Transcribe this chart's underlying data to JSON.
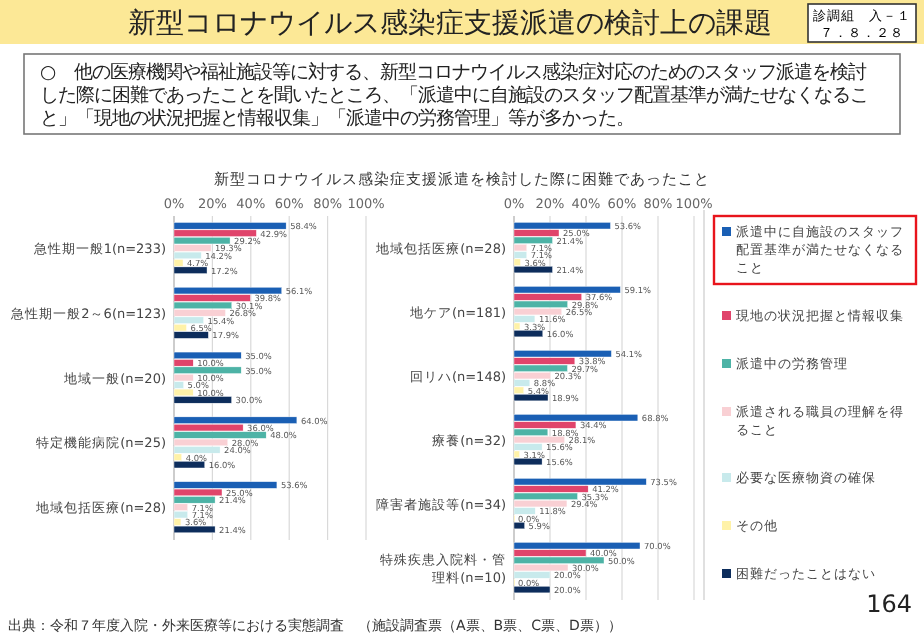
{
  "chart_data": [
    {
      "type": "bar",
      "orientation": "horizontal",
      "title": "新型コロナウイルス感染症支援派遣を検討した際に困難であったこと",
      "annotations": [
        "新型コロナウイルス感染症支援派遣の検討上の課題",
        "診調組　入－１",
        "７．８．２８",
        "○　他の医療機関や福祉施設等に対する、新型コロナウイルス感染症対応のためのスタッフ派遣を検討した際に困難であったことを聞いたところ、「派遣中に自施設のスタッフ配置基準が満たせなくなること」「現地の状況把握と情報収集」「派遣中の労務管理」等が多かった。",
        "出典：令和７年度入院・外来医療等における実態調査　（施設調査票（A票、B票、C票、D票））",
        "164"
      ],
      "categories": [
        "急性期一般1(n=233)",
        "急性期一般2～6(n=123)",
        "地域一般(n=20)",
        "特定機能病院(n=25)",
        "地域包括医療(n=28)"
      ],
      "xlim": [
        0,
        100
      ],
      "xticks": [
        {
          "value": 0,
          "label": "0%"
        },
        {
          "value": 20,
          "label": "20%"
        },
        {
          "value": 40,
          "label": "40%"
        },
        {
          "value": 60,
          "label": "60%"
        },
        {
          "value": 80,
          "label": "80%"
        },
        {
          "value": 100,
          "label": "100%"
        }
      ],
      "grid": "x",
      "series": [
        {
          "color": "#1a5fb4",
          "values": [
            58.4,
            56.1,
            35.0,
            64.0,
            53.6
          ],
          "value_labels": [
            "58.4%",
            "56.1%",
            "35.0%",
            "64.0%",
            "53.6%"
          ]
        },
        {
          "color": "#e0446b",
          "values": [
            42.9,
            39.8,
            10.0,
            36.0,
            25.0
          ],
          "value_labels": [
            "42.9%",
            "39.8%",
            "10.0%",
            "36.0%",
            "25.0%"
          ]
        },
        {
          "color": "#4db3a6",
          "values": [
            29.2,
            30.1,
            35.0,
            48.0,
            21.4
          ],
          "value_labels": [
            "29.2%",
            "30.1%",
            "35.0%",
            "48.0%",
            "21.4%"
          ]
        },
        {
          "color": "#f9d0d4",
          "values": [
            19.3,
            26.8,
            10.0,
            28.0,
            7.1
          ],
          "value_labels": [
            "19.3%",
            "26.8%",
            "10.0%",
            "28.0%",
            "7.1%"
          ]
        },
        {
          "color": "#c8eaec",
          "values": [
            14.2,
            15.4,
            5.0,
            24.0,
            7.1
          ],
          "value_labels": [
            "14.2%",
            "15.4%",
            "5.0%",
            "24.0%",
            "7.1%"
          ]
        },
        {
          "color": "#fff2a8",
          "values": [
            4.7,
            6.5,
            10.0,
            4.0,
            3.6
          ],
          "value_labels": [
            "4.7%",
            "6.5%",
            "10.0%",
            "4.0%",
            "3.6%"
          ]
        },
        {
          "color": "#0d2d5c",
          "values": [
            17.2,
            17.9,
            30.0,
            16.0,
            21.4
          ],
          "value_labels": [
            "17.2%",
            "17.9%",
            "30.0%",
            "16.0%",
            "21.4%"
          ]
        }
      ]
    },
    {
      "type": "bar",
      "orientation": "horizontal",
      "legend": "right",
      "categories": [
        "地域包括医療(n=28)",
        "地ケア(n=181)",
        "回リハ(n=148)",
        "療養(n=32)",
        "障害者施設等(n=34)",
        "特殊疾患入院料・管理料(n=10)"
      ],
      "xlim": [
        0,
        100
      ],
      "xticks": [
        {
          "value": 0,
          "label": "0%"
        },
        {
          "value": 20,
          "label": "20%"
        },
        {
          "value": 40,
          "label": "40%"
        },
        {
          "value": 60,
          "label": "60%"
        },
        {
          "value": 80,
          "label": "80%"
        },
        {
          "value": 100,
          "label": "100%"
        }
      ],
      "grid": "x",
      "series": [
        {
          "name": "派遣中に自施設のスタッフ配置基準が満たせなくなること",
          "color": "#1a5fb4",
          "values": [
            53.6,
            59.1,
            54.1,
            68.8,
            73.5,
            70.0
          ],
          "value_labels": [
            "53.6%",
            "59.1%",
            "54.1%",
            "68.8%",
            "73.5%",
            "70.0%"
          ]
        },
        {
          "name": "現地の状況把握と情報収集",
          "color": "#e0446b",
          "values": [
            25.0,
            37.6,
            33.8,
            34.4,
            41.2,
            40.0
          ],
          "value_labels": [
            "25.0%",
            "37.6%",
            "33.8%",
            "34.4%",
            "41.2%",
            "40.0%"
          ]
        },
        {
          "name": "派遣中の労務管理",
          "color": "#4db3a6",
          "values": [
            21.4,
            29.8,
            29.7,
            18.8,
            35.3,
            50.0
          ],
          "value_labels": [
            "21.4%",
            "29.8%",
            "29.7%",
            "18.8%",
            "35.3%",
            "50.0%"
          ]
        },
        {
          "name": "派遣される職員の理解を得ること",
          "color": "#f9d0d4",
          "values": [
            7.1,
            26.5,
            20.3,
            28.1,
            29.4,
            30.0
          ],
          "value_labels": [
            "7.1%",
            "26.5%",
            "20.3%",
            "28.1%",
            "29.4%",
            "30.0%"
          ]
        },
        {
          "name": "必要な医療物資の確保",
          "color": "#c8eaec",
          "values": [
            7.1,
            11.6,
            8.8,
            15.6,
            11.8,
            20.0
          ],
          "value_labels": [
            "7.1%",
            "11.6%",
            "8.8%",
            "15.6%",
            "11.8%",
            "20.0%"
          ]
        },
        {
          "name": "その他",
          "color": "#fff2a8",
          "values": [
            3.6,
            3.3,
            5.4,
            3.1,
            0.0,
            0.0
          ],
          "value_labels": [
            "3.6%",
            "3.3%",
            "5.4%",
            "3.1%",
            "0.0%",
            "0.0%"
          ]
        },
        {
          "name": "困難だったことはない",
          "color": "#0d2d5c",
          "values": [
            21.4,
            16.0,
            18.9,
            15.6,
            5.9,
            20.0
          ],
          "value_labels": [
            "21.4%",
            "16.0%",
            "18.9%",
            "15.6%",
            "5.9%",
            "20.0%"
          ]
        }
      ]
    }
  ]
}
